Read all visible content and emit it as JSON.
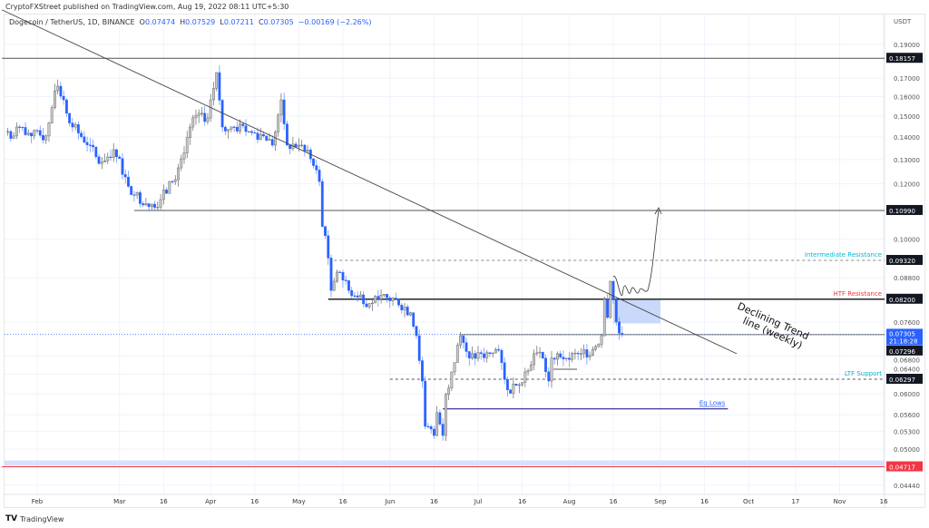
{
  "published": "CryptoFXStreet published on TradingView.com, Aug 19, 2022 08:11 UTC+5:30",
  "legend": {
    "symbol": "Dogecoin / TetherUS, 1D, BINANCE",
    "o_label": "O",
    "o": "0.07474",
    "h_label": "H",
    "h": "0.07529",
    "l_label": "L",
    "l": "0.07211",
    "c_label": "C",
    "c": "0.07305",
    "change": "−0.00169 (−2.26%)"
  },
  "footer": {
    "logo": "TradingView"
  },
  "chart_data": {
    "type": "candlestick",
    "title": "Dogecoin / TetherUS, 1D, BINANCE",
    "y_scale": "log",
    "y_unit": "USDT",
    "grid": true,
    "colors": {
      "up": "#c8c8c8",
      "down": "#2962ff",
      "current_price": "#2962ff",
      "support_label": "#00bcd4",
      "resistance_label": "#f23645",
      "zone": "#bbd0fb"
    },
    "price_ticks": [
      "0.19000",
      "0.17000",
      "0.16000",
      "0.15000",
      "0.14000",
      "0.13000",
      "0.12000",
      "0.10000",
      "0.08800",
      "0.07600",
      "0.06800",
      "0.06400",
      "0.06000",
      "0.05600",
      "0.05300",
      "0.05000",
      "0.04440"
    ],
    "date_ticks": [
      {
        "label": "Feb",
        "date": "2022-02-01"
      },
      {
        "label": "Mar",
        "date": "2022-03-01"
      },
      {
        "label": "16",
        "date": "2022-03-16"
      },
      {
        "label": "Apr",
        "date": "2022-04-01"
      },
      {
        "label": "16",
        "date": "2022-04-16"
      },
      {
        "label": "May",
        "date": "2022-05-01"
      },
      {
        "label": "16",
        "date": "2022-05-16"
      },
      {
        "label": "Jun",
        "date": "2022-06-01"
      },
      {
        "label": "16",
        "date": "2022-06-16"
      },
      {
        "label": "Jul",
        "date": "2022-07-01"
      },
      {
        "label": "16",
        "date": "2022-07-16"
      },
      {
        "label": "Aug",
        "date": "2022-08-01"
      },
      {
        "label": "16",
        "date": "2022-08-16"
      },
      {
        "label": "Sep",
        "date": "2022-09-01"
      },
      {
        "label": "16",
        "date": "2022-09-16"
      },
      {
        "label": "Oct",
        "date": "2022-10-01"
      },
      {
        "label": "17",
        "date": "2022-10-17"
      },
      {
        "label": "Nov",
        "date": "2022-11-01"
      },
      {
        "label": "16",
        "date": "2022-11-16"
      }
    ],
    "price_path": [
      [
        "2022-01-22",
        0.1426
      ],
      [
        "2022-01-24",
        0.1405
      ],
      [
        "2022-01-26",
        0.1447
      ],
      [
        "2022-01-30",
        0.1405
      ],
      [
        "2022-02-04",
        0.1405
      ],
      [
        "2022-02-07",
        0.1631
      ],
      [
        "2022-02-08",
        0.1656
      ],
      [
        "2022-02-10",
        0.1583
      ],
      [
        "2022-02-13",
        0.1447
      ],
      [
        "2022-02-19",
        0.1363
      ],
      [
        "2022-02-22",
        0.1283
      ],
      [
        "2022-02-27",
        0.1343
      ],
      [
        "2022-03-03",
        0.1227
      ],
      [
        "2022-03-06",
        0.1156
      ],
      [
        "2022-03-12",
        0.1122
      ],
      [
        "2022-03-15",
        0.1139
      ],
      [
        "2022-03-19",
        0.1209
      ],
      [
        "2022-03-22",
        0.1303
      ],
      [
        "2022-03-25",
        0.1447
      ],
      [
        "2022-03-28",
        0.1514
      ],
      [
        "2022-03-31",
        0.1491
      ],
      [
        "2022-04-03",
        0.1732
      ],
      [
        "2022-04-05",
        0.1447
      ],
      [
        "2022-04-09",
        0.1447
      ],
      [
        "2022-04-14",
        0.1426
      ],
      [
        "2022-04-19",
        0.1405
      ],
      [
        "2022-04-22",
        0.1363
      ],
      [
        "2022-04-25",
        0.1583
      ],
      [
        "2022-04-27",
        0.1363
      ],
      [
        "2022-05-01",
        0.1363
      ],
      [
        "2022-05-05",
        0.1303
      ],
      [
        "2022-05-08",
        0.1209
      ],
      [
        "2022-05-09",
        0.1042
      ],
      [
        "2022-05-10",
        0.1011
      ],
      [
        "2022-05-12",
        0.0844
      ],
      [
        "2022-05-13",
        0.087
      ],
      [
        "2022-05-15",
        0.0896
      ],
      [
        "2022-05-18",
        0.0844
      ],
      [
        "2022-05-22",
        0.0832
      ],
      [
        "2022-05-25",
        0.0808
      ],
      [
        "2022-05-28",
        0.082
      ],
      [
        "2022-06-03",
        0.082
      ],
      [
        "2022-06-08",
        0.0784
      ],
      [
        "2022-06-10",
        0.0727
      ],
      [
        "2022-06-12",
        0.0626
      ],
      [
        "2022-06-13",
        0.0539
      ],
      [
        "2022-06-16",
        0.0523
      ],
      [
        "2022-06-17",
        0.0564
      ],
      [
        "2022-06-19",
        0.0523
      ],
      [
        "2022-06-20",
        0.0599
      ],
      [
        "2022-06-22",
        0.0645
      ],
      [
        "2022-06-25",
        0.0727
      ],
      [
        "2022-06-28",
        0.0675
      ],
      [
        "2022-07-02",
        0.0685
      ],
      [
        "2022-07-05",
        0.0685
      ],
      [
        "2022-07-07",
        0.0695
      ],
      [
        "2022-07-09",
        0.0665
      ],
      [
        "2022-07-11",
        0.0608
      ],
      [
        "2022-07-14",
        0.0617
      ],
      [
        "2022-07-17",
        0.0645
      ],
      [
        "2022-07-20",
        0.0685
      ],
      [
        "2022-07-23",
        0.0675
      ],
      [
        "2022-07-25",
        0.0626
      ],
      [
        "2022-07-26",
        0.0675
      ],
      [
        "2022-07-28",
        0.0685
      ],
      [
        "2022-07-31",
        0.0675
      ],
      [
        "2022-08-05",
        0.0685
      ],
      [
        "2022-08-09",
        0.0695
      ],
      [
        "2022-08-12",
        0.0727
      ],
      [
        "2022-08-13",
        0.082
      ],
      [
        "2022-08-14",
        0.0772
      ],
      [
        "2022-08-15",
        0.087
      ],
      [
        "2022-08-16",
        0.082
      ],
      [
        "2022-08-17",
        0.0761
      ],
      [
        "2022-08-19",
        0.07305
      ]
    ],
    "levels": [
      {
        "price": 0.18157,
        "label": "0.18157",
        "style": "solid",
        "color": "#555555",
        "start": "2022-01-20"
      },
      {
        "price": 0.1099,
        "label": "0.10990",
        "style": "solid",
        "color": "#555555",
        "start": "2022-03-06"
      },
      {
        "price": 0.0932,
        "label": "0.09320",
        "style": "dashed",
        "color": "#888888",
        "start": "2022-05-13",
        "text": "Intermediate Resistance",
        "text_color": "#00bcd4"
      },
      {
        "price": 0.082,
        "label": "0.08200",
        "style": "solid",
        "color": "#111111",
        "start": "2022-05-11",
        "text": "HTF Resistance",
        "text_color": "#f23645"
      },
      {
        "price": 0.07296,
        "label": "0.07296",
        "style": "solid",
        "color": "#777777",
        "start": "2022-06-25"
      },
      {
        "price": 0.06297,
        "label": "0.06297",
        "style": "dashed",
        "color": "#555555",
        "start": "2022-06-01",
        "text": "LTF Support",
        "text_color": "#00bcd4"
      },
      {
        "price": 0.04717,
        "label": "0.04717",
        "style": "solid",
        "color": "#f23645",
        "start": "2022-01-20",
        "label_bg": "#f23645"
      }
    ],
    "eq_lows": {
      "price": 0.0571,
      "start": "2022-06-19",
      "end": "2022-09-24",
      "text": "Eq Lows",
      "color": "#311b92"
    },
    "current_price": {
      "price": "0.07305",
      "countdown": "21:18:28"
    },
    "trendline": {
      "start": [
        "2022-01-20",
        0.213
      ],
      "end": [
        "2022-09-27",
        0.0685
      ],
      "text_1": "Declining Trend",
      "text_2": "line (weekly)"
    },
    "zone": {
      "start": "2022-08-16",
      "end": "2022-09-01",
      "top": 0.082,
      "bottom": 0.0757
    }
  }
}
